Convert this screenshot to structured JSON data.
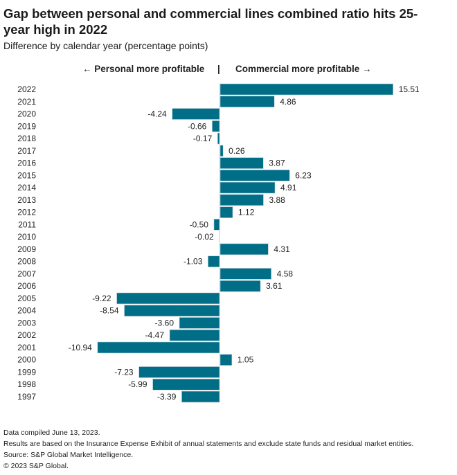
{
  "chart_data": {
    "type": "bar",
    "orientation": "horizontal",
    "title": "Gap between personal and commercial lines combined ratio hits 25-year high in 2022",
    "subtitle": "Difference by calendar year (percentage points)",
    "direction_labels": {
      "left": "← Personal more profitable",
      "separator": "|",
      "right": "Commercial more profitable →"
    },
    "xlabel": "",
    "ylabel": "",
    "grid": false,
    "bar_color": "#006e87",
    "categories": [
      "2022",
      "2021",
      "2020",
      "2019",
      "2018",
      "2017",
      "2016",
      "2015",
      "2014",
      "2013",
      "2012",
      "2011",
      "2010",
      "2009",
      "2008",
      "2007",
      "2006",
      "2005",
      "2004",
      "2003",
      "2002",
      "2001",
      "2000",
      "1999",
      "1998",
      "1997"
    ],
    "values": [
      15.51,
      4.86,
      -4.24,
      -0.66,
      -0.17,
      0.26,
      3.87,
      6.23,
      4.91,
      3.88,
      1.12,
      -0.5,
      -0.02,
      4.31,
      -1.03,
      4.58,
      3.61,
      -9.22,
      -8.54,
      -3.6,
      -4.47,
      -10.94,
      1.05,
      -7.23,
      -5.99,
      -3.39
    ],
    "value_labels": [
      "15.51",
      "4.86",
      "-4.24",
      "-0.66",
      "-0.17",
      "0.26",
      "3.87",
      "6.23",
      "4.91",
      "3.88",
      "1.12",
      "-0.50",
      "-0.02",
      "4.31",
      "-1.03",
      "4.58",
      "3.61",
      "-9.22",
      "-8.54",
      "-3.60",
      "-4.47",
      "-10.94",
      "1.05",
      "-7.23",
      "-5.99",
      "-3.39"
    ],
    "xlim": [
      -11.5,
      16
    ]
  },
  "footer": {
    "lines": [
      "Data compiled June 13, 2023.",
      "Results are based on the Insurance Expense Exhibit of annual statements and exclude state funds and residual market entities.",
      "Source: S&P Global Market Intelligence.",
      "© 2023 S&P Global."
    ]
  }
}
